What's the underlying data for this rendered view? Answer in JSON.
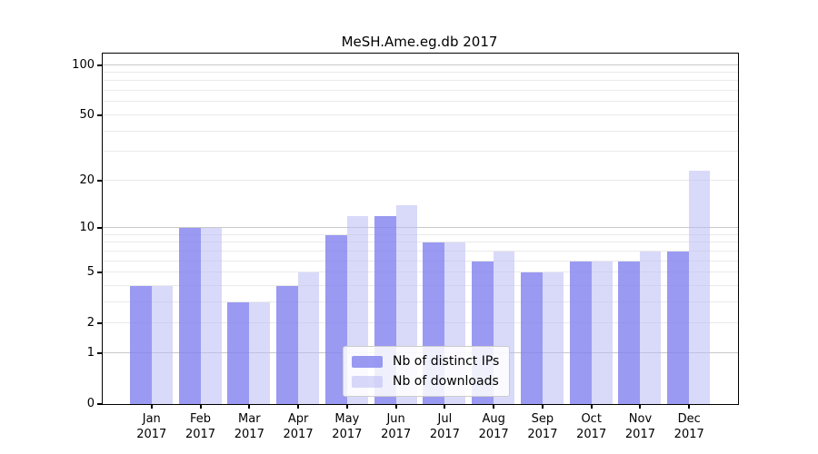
{
  "chart_data": {
    "type": "bar",
    "title": "MeSH.Ame.eg.db 2017",
    "scale": "log1p",
    "grid": true,
    "legend_position": "lower center",
    "categories": [
      "Jan",
      "Feb",
      "Mar",
      "Apr",
      "May",
      "Jun",
      "Jul",
      "Aug",
      "Sep",
      "Oct",
      "Nov",
      "Dec"
    ],
    "category_year": "2017",
    "series": [
      {
        "name": "Nb of distinct IPs",
        "color": "#8484ef",
        "opacity": 0.82,
        "values": [
          4,
          10,
          3,
          4,
          9,
          12,
          8,
          6,
          5,
          6,
          6,
          7
        ]
      },
      {
        "name": "Nb of downloads",
        "color": "#b9b9f6",
        "opacity": 0.55,
        "values": [
          4,
          10,
          3,
          5,
          12,
          14,
          8,
          7,
          5,
          6,
          7,
          23
        ]
      }
    ],
    "y_ticks": [
      0,
      1,
      2,
      5,
      10,
      20,
      50,
      100
    ],
    "y_major_gridlines": [
      1,
      10,
      100
    ],
    "y_minor_gridlines": [
      2,
      3,
      4,
      5,
      6,
      7,
      8,
      9,
      20,
      30,
      40,
      50,
      60,
      70,
      80,
      90
    ],
    "ylim": [
      0,
      117
    ],
    "xlabel": "",
    "ylabel": ""
  },
  "colors": {
    "axis": "#000000",
    "major_grid": "#c9c9c9",
    "minor_grid": "#eaeaea",
    "background": "#ffffff",
    "legend_border": "#cccccc"
  }
}
